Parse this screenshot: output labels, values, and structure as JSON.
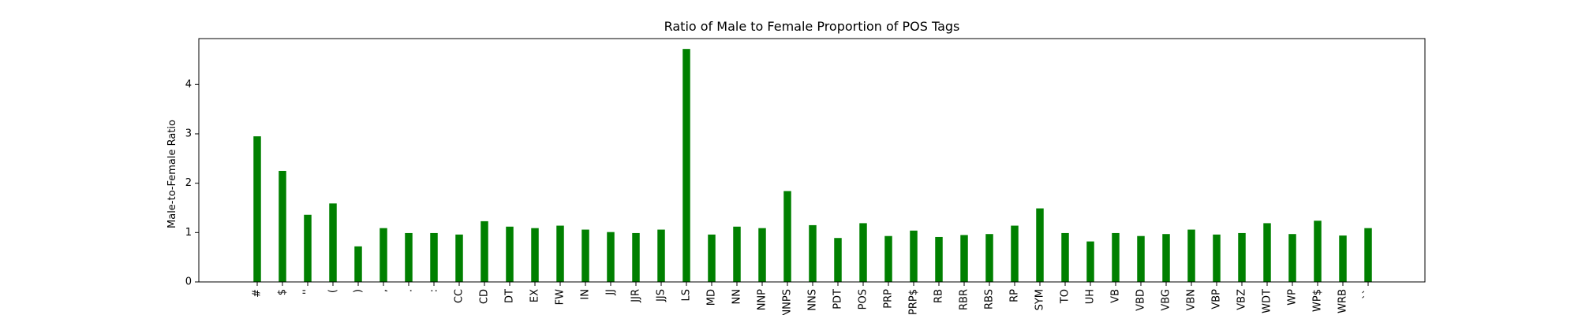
{
  "chart_data": {
    "type": "bar",
    "title": "Ratio of Male to Female Proportion of POS Tags",
    "xlabel": "",
    "ylabel": "Male-to-Female Ratio",
    "ylim": [
      0,
      4.93
    ],
    "yticks": [
      0,
      1,
      2,
      3,
      4
    ],
    "grid": false,
    "bar_color": "#008000",
    "categories": [
      "#",
      "$",
      "''",
      "(",
      ")",
      ",",
      ".",
      ":",
      "CC",
      "CD",
      "DT",
      "EX",
      "FW",
      "IN",
      "JJ",
      "JJR",
      "JJS",
      "LS",
      "MD",
      "NN",
      "NNP",
      "NNPS",
      "NNS",
      "PDT",
      "POS",
      "PRP",
      "PRP$",
      "RB",
      "RBR",
      "RBS",
      "RP",
      "SYM",
      "TO",
      "UH",
      "VB",
      "VBD",
      "VBG",
      "VBN",
      "VBP",
      "VBZ",
      "WDT",
      "WP",
      "WP$",
      "WRB",
      "``"
    ],
    "values": [
      2.95,
      2.25,
      1.36,
      1.59,
      0.72,
      1.09,
      0.99,
      0.99,
      0.96,
      1.23,
      1.12,
      1.09,
      1.14,
      1.06,
      1.01,
      0.99,
      1.06,
      4.72,
      0.96,
      1.12,
      1.09,
      1.84,
      1.15,
      0.89,
      1.19,
      0.93,
      1.04,
      0.91,
      0.95,
      0.97,
      1.14,
      1.49,
      0.99,
      0.82,
      0.99,
      0.93,
      0.97,
      1.06,
      0.96,
      0.99,
      1.19,
      0.97,
      1.24,
      0.94,
      1.09
    ]
  }
}
